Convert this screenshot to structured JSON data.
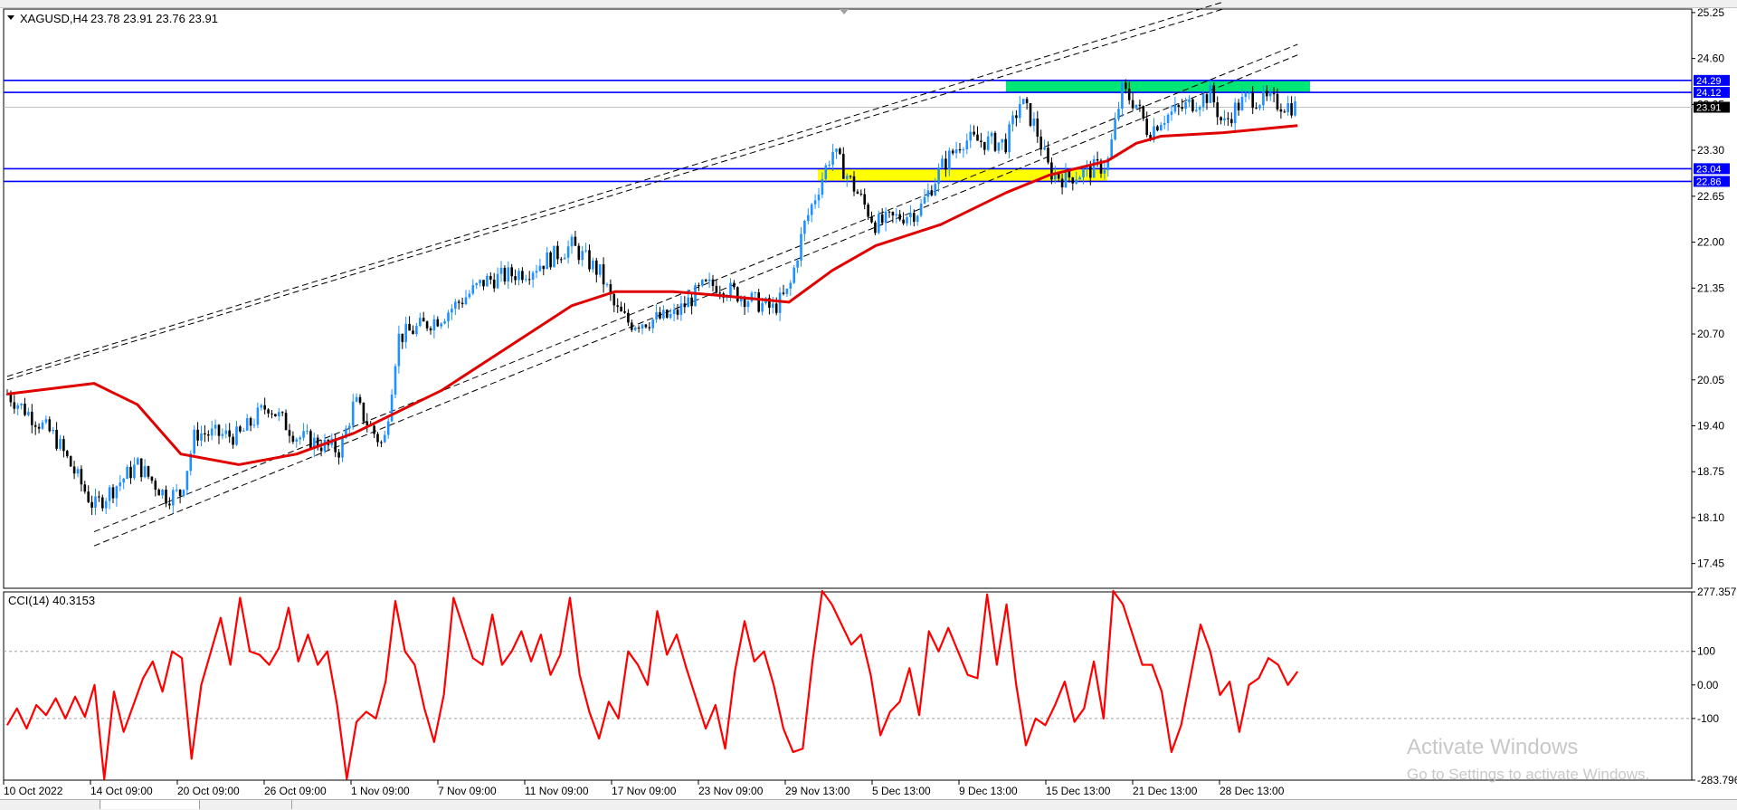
{
  "header": {
    "symbol_label": "XAGUSD,H4",
    "ohlc_label": "23.78 23.91 23.76 23.91"
  },
  "indicator": {
    "label": "CCI(14) 40.3153"
  },
  "watermark": {
    "title": "Activate Windows",
    "subtitle": "Go to Settings to activate Windows."
  },
  "colors": {
    "candle_up": "#1e90ff",
    "candle_down": "#000000",
    "ma_line": "#e00000",
    "cci_line": "#ff0000",
    "level_line": "#0000ff",
    "resistance_zone": "#00e676",
    "support_zone": "#ffff00",
    "channel_line": "#000000"
  },
  "chart_data": [
    {
      "type": "candlestick",
      "panel": "price",
      "symbol": "XAGUSD",
      "timeframe": "H4",
      "last_price": 23.91,
      "ylim": [
        17.1,
        25.3
      ],
      "xlim": [
        "10 Oct 2022",
        "5 Jan 2023"
      ],
      "y_ticks": [
        25.25,
        24.6,
        23.95,
        23.3,
        22.65,
        22.0,
        21.35,
        20.7,
        20.05,
        19.4,
        18.75,
        18.1,
        17.45
      ],
      "y_tick_labels": [
        "25.25",
        "24.60",
        "23.95",
        "23.30",
        "22.65",
        "22.00",
        "21.35",
        "20.70",
        "20.05",
        "19.40",
        "18.75",
        "18.10",
        "17.45"
      ],
      "x_tick_labels": [
        "10 Oct 2022",
        "14 Oct 09:00",
        "20 Oct 09:00",
        "26 Oct 09:00",
        "1 Nov 09:00",
        "7 Nov 09:00",
        "11 Nov 09:00",
        "17 Nov 09:00",
        "23 Nov 09:00",
        "29 Nov 13:00",
        "5 Dec 13:00",
        "9 Dec 13:00",
        "15 Dec 13:00",
        "21 Dec 13:00",
        "28 Dec 13:00"
      ],
      "price_path": [
        [
          "10 Oct 2022",
          19.85
        ],
        [
          "12 Oct 09:00",
          19.25
        ],
        [
          "14 Oct 09:00",
          18.25
        ],
        [
          "17 Oct 09:00",
          18.85
        ],
        [
          "19 Oct 09:00",
          18.4
        ],
        [
          "20 Oct 09:00",
          18.45
        ],
        [
          "21 Oct 09:00",
          19.3
        ],
        [
          "24 Oct 09:00",
          19.25
        ],
        [
          "26 Oct 09:00",
          19.7
        ],
        [
          "28 Oct 09:00",
          19.25
        ],
        [
          "31 Oct 09:00",
          19.05
        ],
        [
          "1 Nov 09:00",
          19.75
        ],
        [
          "2 Nov 09:00",
          19.4
        ],
        [
          "3 Nov 09:00",
          19.1
        ],
        [
          "4 Nov 09:00",
          20.65
        ],
        [
          "7 Nov 09:00",
          20.95
        ],
        [
          "9 Nov 09:00",
          21.45
        ],
        [
          "11 Nov 09:00",
          21.6
        ],
        [
          "14 Nov 09:00",
          21.95
        ],
        [
          "16 Nov 09:00",
          21.55
        ],
        [
          "17 Nov 09:00",
          21.05
        ],
        [
          "18 Nov 09:00",
          20.85
        ],
        [
          "21 Nov 09:00",
          20.95
        ],
        [
          "23 Nov 09:00",
          21.35
        ],
        [
          "24 Nov 09:00",
          21.4
        ],
        [
          "28 Nov 09:00",
          21.05
        ],
        [
          "29 Nov 13:00",
          21.3
        ],
        [
          "30 Nov 13:00",
          22.2
        ],
        [
          "1 Dec 13:00",
          22.75
        ],
        [
          "2 Dec 13:00",
          23.3
        ],
        [
          "5 Dec 13:00",
          22.25
        ],
        [
          "7 Dec 13:00",
          22.45
        ],
        [
          "8 Dec 13:00",
          23.05
        ],
        [
          "9 Dec 13:00",
          23.45
        ],
        [
          "12 Dec 13:00",
          23.4
        ],
        [
          "13 Dec 13:00",
          24.0
        ],
        [
          "14 Dec 13:00",
          23.65
        ],
        [
          "15 Dec 13:00",
          23.0
        ],
        [
          "16 Dec 13:00",
          22.9
        ],
        [
          "19 Dec 13:00",
          23.1
        ],
        [
          "20 Dec 13:00",
          24.15
        ],
        [
          "21 Dec 13:00",
          23.95
        ],
        [
          "22 Dec 13:00",
          23.55
        ],
        [
          "23 Dec 13:00",
          23.75
        ],
        [
          "27 Dec 13:00",
          24.1
        ],
        [
          "28 Dec 13:00",
          23.65
        ],
        [
          "29 Dec 13:00",
          23.9
        ],
        [
          "30 Dec 13:00",
          24.05
        ],
        [
          "3 Jan 13:00",
          23.91
        ]
      ],
      "moving_average": [
        [
          "10 Oct 2022",
          19.85
        ],
        [
          "14 Oct 09:00",
          20.0
        ],
        [
          "17 Oct 09:00",
          19.7
        ],
        [
          "20 Oct 09:00",
          19.0
        ],
        [
          "24 Oct 09:00",
          18.85
        ],
        [
          "28 Oct 09:00",
          19.0
        ],
        [
          "1 Nov 09:00",
          19.3
        ],
        [
          "3 Nov 09:00",
          19.5
        ],
        [
          "7 Nov 09:00",
          19.9
        ],
        [
          "10 Nov 09:00",
          20.5
        ],
        [
          "14 Nov 09:00",
          21.1
        ],
        [
          "17 Nov 09:00",
          21.3
        ],
        [
          "21 Nov 09:00",
          21.3
        ],
        [
          "24 Nov 09:00",
          21.25
        ],
        [
          "29 Nov 13:00",
          21.15
        ],
        [
          "2 Dec 13:00",
          21.6
        ],
        [
          "5 Dec 13:00",
          21.95
        ],
        [
          "8 Dec 13:00",
          22.25
        ],
        [
          "12 Dec 13:00",
          22.7
        ],
        [
          "15 Dec 13:00",
          22.95
        ],
        [
          "19 Dec 13:00",
          23.15
        ],
        [
          "21 Dec 13:00",
          23.4
        ],
        [
          "23 Dec 13:00",
          23.5
        ],
        [
          "28 Dec 13:00",
          23.55
        ],
        [
          "3 Jan 13:00",
          23.65
        ]
      ],
      "horizontal_levels": [
        24.29,
        24.12,
        23.04,
        22.86
      ],
      "current_price_line": 23.91,
      "zones": [
        {
          "kind": "resistance",
          "from_price": 24.12,
          "to_price": 24.29,
          "from_date": "12 Dec 13:00",
          "to_date": "4 Jan 13:00"
        },
        {
          "kind": "support",
          "from_price": 22.86,
          "to_price": 23.04,
          "from_date": "1 Dec 13:00",
          "to_date": "19 Dec 13:00"
        }
      ],
      "channel_lines": [
        {
          "from": [
            "10 Oct 2022",
            20.05
          ],
          "to": [
            "28 Dec 13:00",
            25.3
          ]
        },
        {
          "from": [
            "10 Oct 2022",
            20.1
          ],
          "to": [
            "28 Dec 13:00",
            25.4
          ]
        },
        {
          "from": [
            "14 Oct 09:00",
            17.7
          ],
          "to": [
            "3 Jan 13:00",
            24.65
          ]
        },
        {
          "from": [
            "14 Oct 09:00",
            17.9
          ],
          "to": [
            "3 Jan 13:00",
            24.8
          ]
        }
      ]
    },
    {
      "type": "line",
      "panel": "indicator",
      "name": "CCI(14)",
      "last_value": 40.3153,
      "ylim": [
        -283.796,
        277.357
      ],
      "y_ticks": [
        277.357,
        100,
        0.0,
        -100,
        -283.796
      ],
      "y_tick_labels": [
        "277.357",
        "100",
        "0.00",
        "-100",
        "-283.796"
      ],
      "reference_levels": [
        100,
        -100
      ],
      "values": [
        -120,
        -70,
        -130,
        -60,
        -90,
        -40,
        -100,
        -35,
        -95,
        0,
        -280,
        -20,
        -140,
        -60,
        20,
        70,
        -20,
        100,
        80,
        -220,
        0,
        100,
        200,
        60,
        260,
        100,
        90,
        60,
        110,
        230,
        70,
        150,
        60,
        100,
        -60,
        -280,
        -110,
        -80,
        -100,
        10,
        250,
        100,
        60,
        -70,
        -170,
        -30,
        260,
        170,
        80,
        60,
        210,
        60,
        100,
        160,
        70,
        150,
        30,
        90,
        260,
        30,
        -80,
        -160,
        -50,
        -100,
        100,
        60,
        0,
        220,
        90,
        150,
        50,
        -40,
        -130,
        -60,
        -190,
        40,
        190,
        70,
        100,
        0,
        -130,
        -200,
        -190,
        70,
        280,
        240,
        180,
        120,
        150,
        30,
        -150,
        -80,
        -50,
        50,
        -90,
        160,
        100,
        170,
        100,
        30,
        20,
        270,
        60,
        240,
        0,
        -180,
        -100,
        -120,
        -60,
        10,
        -110,
        -70,
        70,
        -100,
        280,
        240,
        150,
        60,
        60,
        -20,
        -200,
        -120,
        30,
        180,
        100,
        -30,
        10,
        -140,
        0,
        20,
        80,
        60,
        0,
        40
      ]
    }
  ]
}
